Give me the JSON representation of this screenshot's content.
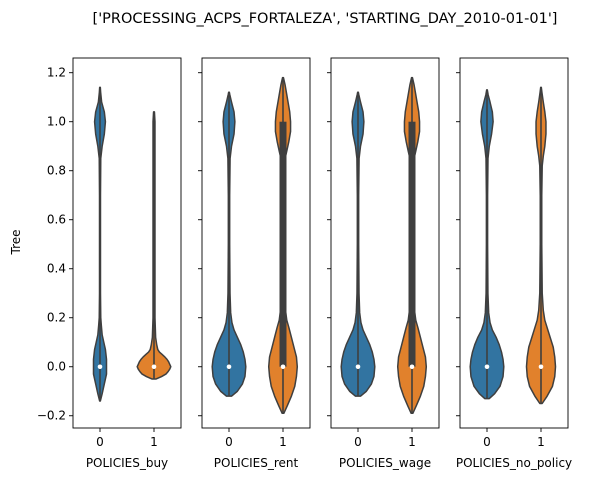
{
  "chart_data": {
    "type": "violin",
    "title": "['PROCESSING_ACPS_FORTALEZA', 'STARTING_DAY_2010-01-01']",
    "ylabel": "Tree",
    "ylim": [
      -0.25,
      1.26
    ],
    "yticks": [
      -0.2,
      0.0,
      0.2,
      0.4,
      0.6,
      0.8,
      1.0,
      1.2
    ],
    "ytick_labels": [
      "−0.2",
      "0.0",
      "0.2",
      "0.4",
      "0.6",
      "0.8",
      "1.0",
      "1.2"
    ],
    "sharey": true,
    "grid": false,
    "colors": {
      "0": "#3274a1",
      "1": "#e1812c"
    },
    "panels": [
      {
        "xlabel": "POLICIES_buy",
        "categories": [
          "0",
          "1"
        ],
        "violins": [
          {
            "category": "0",
            "range": [
              -0.14,
              1.14
            ],
            "median": 0.0,
            "q1": 0.0,
            "q3": 0.0,
            "profile": [
              [
                -0.14,
                0.3
              ],
              [
                -0.11,
                2
              ],
              [
                -0.07,
                4
              ],
              [
                -0.03,
                6
              ],
              [
                0.0,
                6
              ],
              [
                0.03,
                6
              ],
              [
                0.07,
                5
              ],
              [
                0.1,
                3.5
              ],
              [
                0.13,
                2
              ],
              [
                0.17,
                1.2
              ],
              [
                0.2,
                0.7
              ],
              [
                0.3,
                0.45
              ],
              [
                0.5,
                0.45
              ],
              [
                0.7,
                0.45
              ],
              [
                0.85,
                0.7
              ],
              [
                0.9,
                2
              ],
              [
                0.95,
                4
              ],
              [
                1.0,
                5
              ],
              [
                1.04,
                4
              ],
              [
                1.08,
                1.5
              ],
              [
                1.12,
                0.6
              ],
              [
                1.14,
                0.3
              ]
            ]
          },
          {
            "category": "1",
            "range": [
              -0.05,
              1.04
            ],
            "median": 0.0,
            "q1": 0.0,
            "q3": 0.0,
            "profile": [
              [
                -0.05,
                2
              ],
              [
                -0.04,
                7
              ],
              [
                -0.03,
                11
              ],
              [
                -0.02,
                13
              ],
              [
                -0.01,
                14.5
              ],
              [
                0.0,
                15.5
              ],
              [
                0.01,
                14.5
              ],
              [
                0.02,
                13.5
              ],
              [
                0.03,
                12
              ],
              [
                0.04,
                10
              ],
              [
                0.05,
                7.5
              ],
              [
                0.06,
                5
              ],
              [
                0.07,
                3.5
              ],
              [
                0.09,
                2.5
              ],
              [
                0.12,
                1.5
              ],
              [
                0.2,
                0.9
              ],
              [
                0.5,
                0.9
              ],
              [
                0.8,
                0.9
              ],
              [
                1.0,
                0.9
              ],
              [
                1.04,
                0.4
              ]
            ]
          }
        ]
      },
      {
        "xlabel": "POLICIES_rent",
        "categories": [
          "0",
          "1"
        ],
        "violins": [
          {
            "category": "0",
            "range": [
              -0.12,
              1.12
            ],
            "median": 0.0,
            "q1": 0.0,
            "q3": 0.0,
            "profile": [
              [
                -0.12,
                3
              ],
              [
                -0.1,
                10
              ],
              [
                -0.07,
                16
              ],
              [
                -0.04,
                19
              ],
              [
                0.0,
                20
              ],
              [
                0.03,
                19
              ],
              [
                0.06,
                17
              ],
              [
                0.09,
                14
              ],
              [
                0.12,
                10
              ],
              [
                0.15,
                6
              ],
              [
                0.18,
                3.5
              ],
              [
                0.22,
                2
              ],
              [
                0.3,
                1.2
              ],
              [
                0.5,
                0.8
              ],
              [
                0.7,
                0.8
              ],
              [
                0.85,
                1.3
              ],
              [
                0.9,
                3
              ],
              [
                0.95,
                6
              ],
              [
                1.0,
                7
              ],
              [
                1.04,
                6
              ],
              [
                1.08,
                3
              ],
              [
                1.11,
                1
              ],
              [
                1.12,
                0.4
              ]
            ]
          },
          {
            "category": "1",
            "range": [
              -0.19,
              1.18
            ],
            "median": 0.0,
            "q1": 0.0,
            "q3": 1.0,
            "profile": [
              [
                -0.19,
                1
              ],
              [
                -0.16,
                5
              ],
              [
                -0.12,
                10
              ],
              [
                -0.08,
                14
              ],
              [
                -0.04,
                16
              ],
              [
                0.0,
                17
              ],
              [
                0.04,
                16
              ],
              [
                0.08,
                13
              ],
              [
                0.12,
                10
              ],
              [
                0.16,
                7
              ],
              [
                0.19,
                4.5
              ],
              [
                0.23,
                3
              ],
              [
                0.3,
                2.2
              ],
              [
                0.5,
                1.7
              ],
              [
                0.7,
                1.7
              ],
              [
                0.85,
                2.5
              ],
              [
                0.88,
                4.5
              ],
              [
                0.92,
                7
              ],
              [
                0.96,
                9
              ],
              [
                1.0,
                9
              ],
              [
                1.04,
                8
              ],
              [
                1.08,
                6
              ],
              [
                1.12,
                4
              ],
              [
                1.15,
                2.5
              ],
              [
                1.18,
                0.5
              ]
            ]
          }
        ]
      },
      {
        "xlabel": "POLICIES_wage",
        "categories": [
          "0",
          "1"
        ],
        "violins": [
          {
            "category": "0",
            "range": [
              -0.12,
              1.12
            ],
            "median": 0.0,
            "q1": 0.0,
            "q3": 0.0,
            "profile": [
              [
                -0.12,
                3
              ],
              [
                -0.1,
                10
              ],
              [
                -0.07,
                16
              ],
              [
                -0.04,
                19
              ],
              [
                0.0,
                20
              ],
              [
                0.03,
                19
              ],
              [
                0.06,
                17
              ],
              [
                0.09,
                14
              ],
              [
                0.12,
                10
              ],
              [
                0.15,
                6
              ],
              [
                0.18,
                3.5
              ],
              [
                0.22,
                2
              ],
              [
                0.3,
                1.2
              ],
              [
                0.5,
                0.8
              ],
              [
                0.7,
                0.8
              ],
              [
                0.85,
                1.3
              ],
              [
                0.9,
                3
              ],
              [
                0.95,
                6
              ],
              [
                1.0,
                7
              ],
              [
                1.04,
                6
              ],
              [
                1.08,
                3
              ],
              [
                1.11,
                1
              ],
              [
                1.12,
                0.4
              ]
            ]
          },
          {
            "category": "1",
            "range": [
              -0.19,
              1.18
            ],
            "median": 0.0,
            "q1": 0.0,
            "q3": 1.0,
            "profile": [
              [
                -0.19,
                1
              ],
              [
                -0.16,
                5
              ],
              [
                -0.12,
                10
              ],
              [
                -0.08,
                14
              ],
              [
                -0.04,
                16
              ],
              [
                0.0,
                17
              ],
              [
                0.04,
                16
              ],
              [
                0.08,
                13
              ],
              [
                0.12,
                10
              ],
              [
                0.16,
                7
              ],
              [
                0.19,
                4.5
              ],
              [
                0.23,
                3
              ],
              [
                0.3,
                2.2
              ],
              [
                0.5,
                1.7
              ],
              [
                0.7,
                1.7
              ],
              [
                0.85,
                2.5
              ],
              [
                0.88,
                4.5
              ],
              [
                0.92,
                7
              ],
              [
                0.96,
                9
              ],
              [
                1.0,
                9
              ],
              [
                1.04,
                8
              ],
              [
                1.08,
                6
              ],
              [
                1.12,
                4
              ],
              [
                1.15,
                2.5
              ],
              [
                1.18,
                0.5
              ]
            ]
          }
        ]
      },
      {
        "xlabel": "POLICIES_no_policy",
        "categories": [
          "0",
          "1"
        ],
        "violins": [
          {
            "category": "0",
            "range": [
              -0.13,
              1.13
            ],
            "median": 0.0,
            "q1": 0.0,
            "q3": 0.0,
            "profile": [
              [
                -0.13,
                3
              ],
              [
                -0.11,
                10
              ],
              [
                -0.08,
                17
              ],
              [
                -0.04,
                21
              ],
              [
                0.0,
                22
              ],
              [
                0.03,
                21
              ],
              [
                0.06,
                19
              ],
              [
                0.09,
                16
              ],
              [
                0.12,
                12
              ],
              [
                0.15,
                7
              ],
              [
                0.18,
                4
              ],
              [
                0.22,
                2.2
              ],
              [
                0.3,
                1.2
              ],
              [
                0.5,
                0.8
              ],
              [
                0.7,
                0.8
              ],
              [
                0.85,
                1.3
              ],
              [
                0.9,
                3
              ],
              [
                0.95,
                6
              ],
              [
                1.0,
                8
              ],
              [
                1.04,
                7
              ],
              [
                1.08,
                4
              ],
              [
                1.11,
                1.5
              ],
              [
                1.13,
                0.4
              ]
            ]
          },
          {
            "category": "1",
            "range": [
              -0.15,
              1.14
            ],
            "median": 0.0,
            "q1": 0.0,
            "q3": 0.0,
            "profile": [
              [
                -0.15,
                1.5
              ],
              [
                -0.12,
                8
              ],
              [
                -0.08,
                15
              ],
              [
                -0.04,
                18
              ],
              [
                0.0,
                19
              ],
              [
                0.04,
                18
              ],
              [
                0.08,
                16
              ],
              [
                0.12,
                12
              ],
              [
                0.16,
                8
              ],
              [
                0.19,
                5
              ],
              [
                0.23,
                3
              ],
              [
                0.3,
                1.6
              ],
              [
                0.5,
                1.0
              ],
              [
                0.7,
                1.0
              ],
              [
                0.82,
                1.6
              ],
              [
                0.86,
                3
              ],
              [
                0.9,
                5
              ],
              [
                0.95,
                6.5
              ],
              [
                1.0,
                6.5
              ],
              [
                1.04,
                5
              ],
              [
                1.08,
                3
              ],
              [
                1.12,
                1.2
              ],
              [
                1.14,
                0.4
              ]
            ]
          }
        ]
      }
    ]
  }
}
